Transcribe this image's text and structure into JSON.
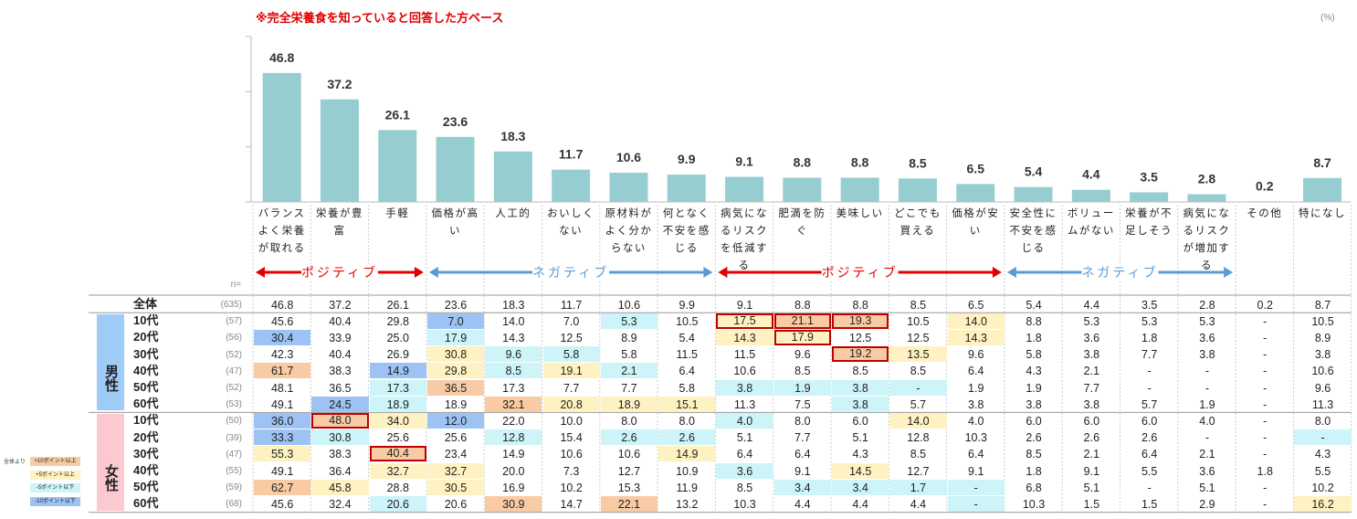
{
  "title": "※完全栄養食を知っていると回答した方ベース",
  "unit": "(%)",
  "chart_data": {
    "type": "bar",
    "categories": [
      "バランスよく栄養が取れる",
      "栄養が豊富",
      "手軽",
      "価格が高い",
      "人工的",
      "おいしくない",
      "原材料がよく分からない",
      "何となく不安を感じる",
      "病気になるリスクを低減する",
      "肥満を防ぐ",
      "美味しい",
      "どこでも買える",
      "価格が安い",
      "安全性に不安を感じる",
      "ボリュームがない",
      "栄養が不足しそう",
      "病気になるリスクが増加する",
      "その他",
      "特になし"
    ],
    "values": [
      46.8,
      37.2,
      26.1,
      23.6,
      18.3,
      11.7,
      10.6,
      9.9,
      9.1,
      8.8,
      8.8,
      8.5,
      6.5,
      5.4,
      4.4,
      3.5,
      2.8,
      0.2,
      8.7
    ],
    "color": "#96cdd0",
    "ylim": [
      0,
      60
    ],
    "yticks": [
      0,
      20,
      40,
      60
    ]
  },
  "groups": [
    {
      "label": "ポジティブ",
      "columns": 3,
      "color": "#e00000"
    },
    {
      "label": "ネガティブ",
      "columns": 5,
      "color": "#5b9bd5"
    },
    {
      "label": "ポジティブ",
      "columns": 5,
      "color": "#e00000"
    },
    {
      "label": "ネガティブ",
      "columns": 4,
      "color": "#5b9bd5"
    }
  ],
  "table": {
    "n_label": "n=",
    "rows": [
      {
        "label": "全体",
        "n": "(635)",
        "cells": [
          "46.8",
          "37.2",
          "26.1",
          "23.6",
          "18.3",
          "11.7",
          "10.6",
          "9.9",
          "9.1",
          "8.8",
          "8.8",
          "8.5",
          "6.5",
          "5.4",
          "4.4",
          "3.5",
          "2.8",
          "0.2",
          "8.7"
        ]
      }
    ],
    "sections": [
      {
        "label": "男性",
        "color": "#9fcbf7",
        "rows": [
          {
            "label": "10代",
            "n": "(57)",
            "boxed": [
              8,
              9,
              10
            ],
            "cells": [
              "45.6",
              "40.4",
              "29.8",
              "7.0",
              "14.0",
              "7.0",
              "5.3",
              "10.5",
              "17.5",
              "21.1",
              "19.3",
              "10.5",
              "14.0",
              "8.8",
              "5.3",
              "5.3",
              "5.3",
              "-",
              "10.5"
            ]
          },
          {
            "label": "20代",
            "n": "(56)",
            "boxed": [
              9
            ],
            "cells": [
              "30.4",
              "33.9",
              "25.0",
              "17.9",
              "14.3",
              "12.5",
              "8.9",
              "5.4",
              "14.3",
              "17.9",
              "12.5",
              "12.5",
              "14.3",
              "1.8",
              "3.6",
              "1.8",
              "3.6",
              "-",
              "8.9"
            ]
          },
          {
            "label": "30代",
            "n": "(52)",
            "boxed": [
              10
            ],
            "cells": [
              "42.3",
              "40.4",
              "26.9",
              "30.8",
              "9.6",
              "5.8",
              "5.8",
              "11.5",
              "11.5",
              "9.6",
              "19.2",
              "13.5",
              "9.6",
              "5.8",
              "3.8",
              "7.7",
              "3.8",
              "-",
              "3.8"
            ]
          },
          {
            "label": "40代",
            "n": "(47)",
            "cells": [
              "61.7",
              "38.3",
              "14.9",
              "29.8",
              "8.5",
              "19.1",
              "2.1",
              "6.4",
              "10.6",
              "8.5",
              "8.5",
              "8.5",
              "6.4",
              "4.3",
              "2.1",
              "-",
              "-",
              "-",
              "10.6"
            ]
          },
          {
            "label": "50代",
            "n": "(52)",
            "cells": [
              "48.1",
              "36.5",
              "17.3",
              "36.5",
              "17.3",
              "7.7",
              "7.7",
              "5.8",
              "3.8",
              "1.9",
              "3.8",
              "-",
              "1.9",
              "1.9",
              "7.7",
              "-",
              "-",
              "-",
              "9.6"
            ]
          },
          {
            "label": "60代",
            "n": "(53)",
            "cells": [
              "49.1",
              "24.5",
              "18.9",
              "18.9",
              "32.1",
              "20.8",
              "18.9",
              "15.1",
              "11.3",
              "7.5",
              "3.8",
              "5.7",
              "3.8",
              "3.8",
              "3.8",
              "5.7",
              "1.9",
              "-",
              "11.3"
            ]
          }
        ]
      },
      {
        "label": "女性",
        "color": "#fbc9cf",
        "rows": [
          {
            "label": "10代",
            "n": "(50)",
            "boxed": [
              1
            ],
            "cells": [
              "36.0",
              "48.0",
              "34.0",
              "12.0",
              "22.0",
              "10.0",
              "8.0",
              "8.0",
              "4.0",
              "8.0",
              "6.0",
              "14.0",
              "4.0",
              "6.0",
              "6.0",
              "6.0",
              "4.0",
              "-",
              "8.0"
            ]
          },
          {
            "label": "20代",
            "n": "(39)",
            "cells": [
              "33.3",
              "30.8",
              "25.6",
              "25.6",
              "12.8",
              "15.4",
              "2.6",
              "2.6",
              "5.1",
              "7.7",
              "5.1",
              "12.8",
              "10.3",
              "2.6",
              "2.6",
              "2.6",
              "-",
              "-",
              "-"
            ]
          },
          {
            "label": "30代",
            "n": "(47)",
            "boxed": [
              2
            ],
            "cells": [
              "55.3",
              "38.3",
              "40.4",
              "23.4",
              "14.9",
              "10.6",
              "10.6",
              "14.9",
              "6.4",
              "6.4",
              "4.3",
              "8.5",
              "6.4",
              "8.5",
              "2.1",
              "6.4",
              "2.1",
              "-",
              "4.3"
            ]
          },
          {
            "label": "40代",
            "n": "(55)",
            "cells": [
              "49.1",
              "36.4",
              "32.7",
              "32.7",
              "20.0",
              "7.3",
              "12.7",
              "10.9",
              "3.6",
              "9.1",
              "14.5",
              "12.7",
              "9.1",
              "1.8",
              "9.1",
              "5.5",
              "3.6",
              "1.8",
              "5.5"
            ]
          },
          {
            "label": "50代",
            "n": "(59)",
            "cells": [
              "62.7",
              "45.8",
              "28.8",
              "30.5",
              "16.9",
              "10.2",
              "15.3",
              "11.9",
              "8.5",
              "3.4",
              "3.4",
              "1.7",
              "-",
              "6.8",
              "5.1",
              "-",
              "5.1",
              "-",
              "10.2"
            ]
          },
          {
            "label": "60代",
            "n": "(68)",
            "cells": [
              "45.6",
              "32.4",
              "20.6",
              "20.6",
              "30.9",
              "14.7",
              "22.1",
              "13.2",
              "10.3",
              "4.4",
              "4.4",
              "4.4",
              "-",
              "10.3",
              "1.5",
              "1.5",
              "2.9",
              "-",
              "16.2"
            ]
          }
        ]
      }
    ]
  },
  "legend": {
    "title": "全体より",
    "items": [
      {
        "value": 10,
        "label": "+10ポイント以上",
        "color": "#f8cba4"
      },
      {
        "value": 5,
        "label": "+5ポイント以上",
        "color": "#fff2c2"
      },
      {
        "value": -5,
        "label": "-5ポイント以下",
        "color": "#cdf4f8"
      },
      {
        "value": -10,
        "label": "-10ポイント以下",
        "color": "#9dc3f5"
      }
    ]
  }
}
